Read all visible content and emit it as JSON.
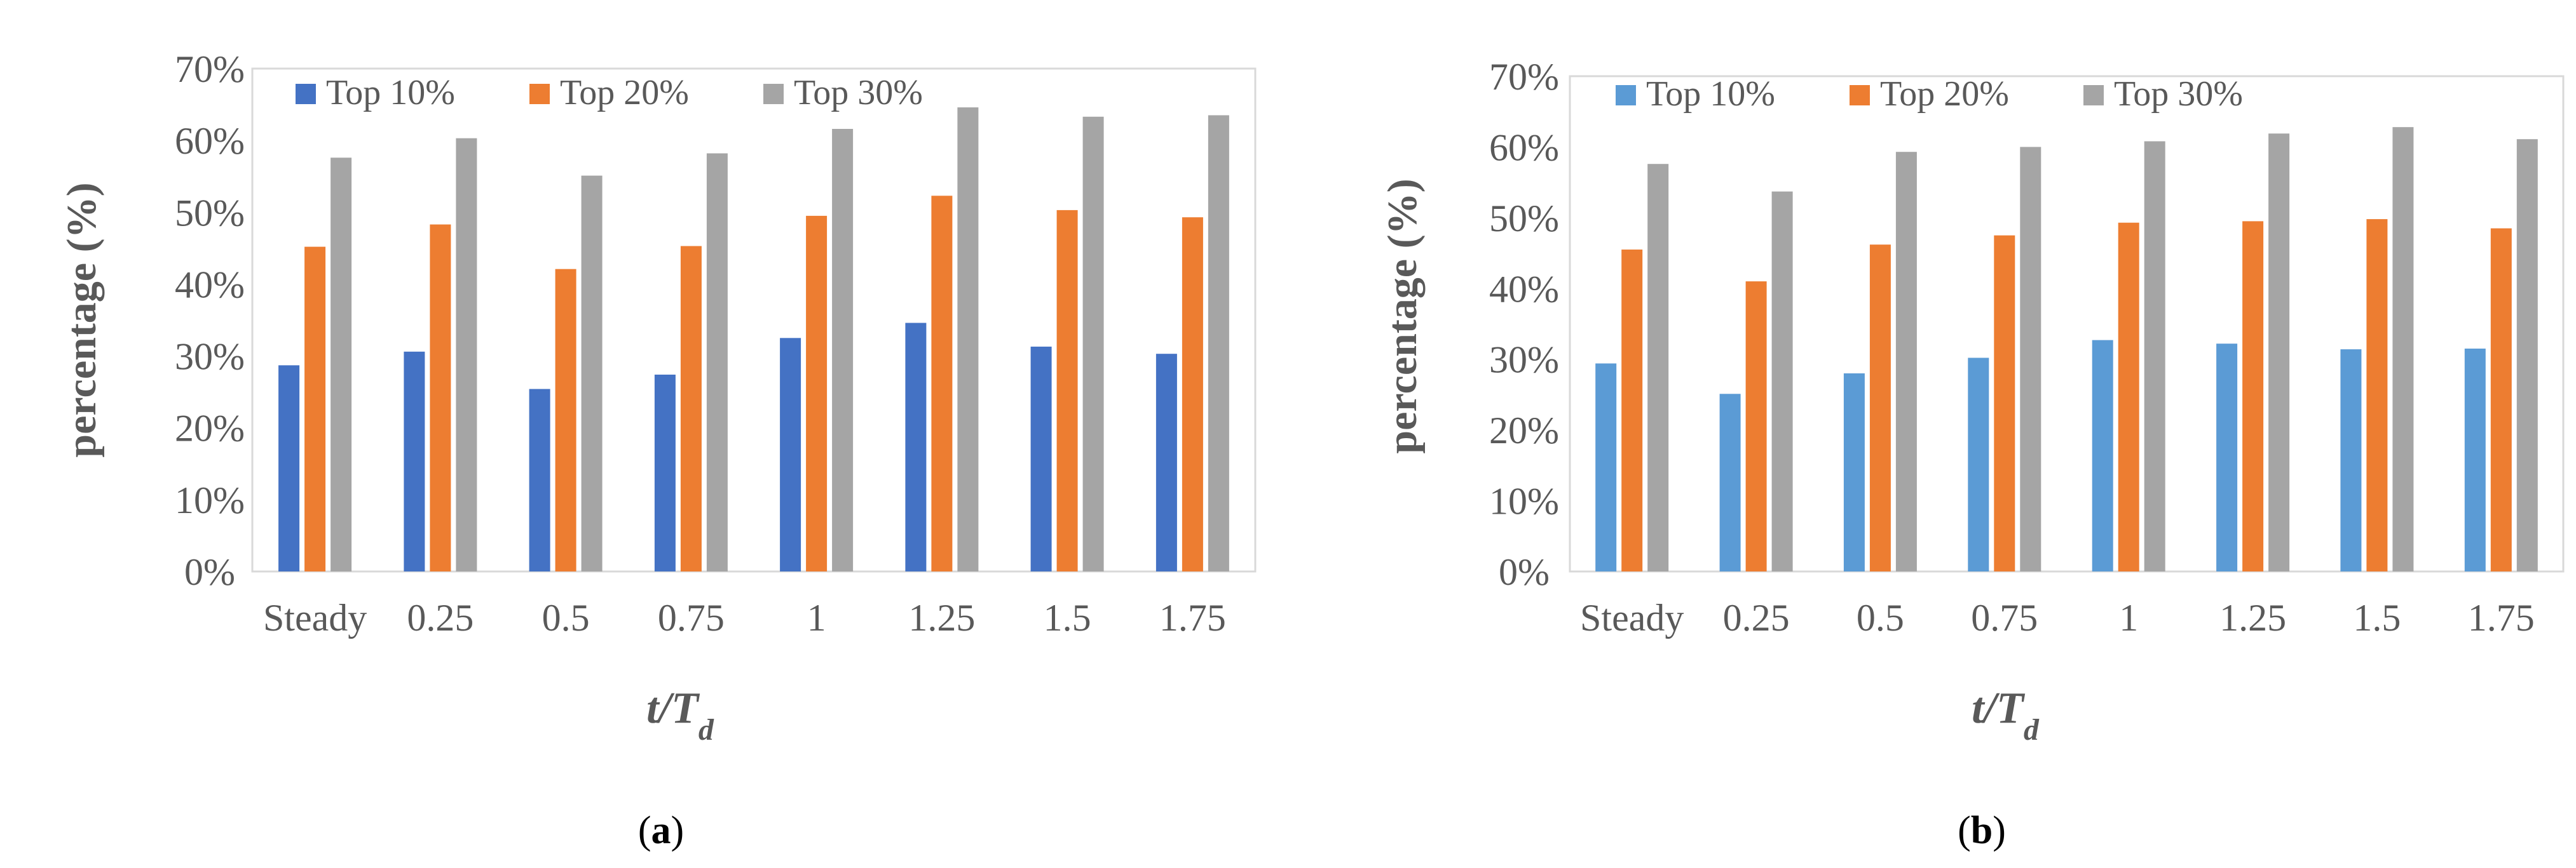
{
  "chart_data": [
    {
      "type": "bar",
      "panel_label": "a",
      "categories": [
        "Steady",
        "0.25",
        "0.5",
        "0.75",
        "1",
        "1.25",
        "1.5",
        "1.75"
      ],
      "series": [
        {
          "name": "Top 10%",
          "color": "#4472C4",
          "values": [
            28.7,
            30.6,
            25.4,
            27.4,
            32.5,
            34.6,
            31.3,
            30.3
          ]
        },
        {
          "name": "Top 20%",
          "color": "#ED7D31",
          "values": [
            45.2,
            48.3,
            42.1,
            45.3,
            49.5,
            52.3,
            50.3,
            49.3
          ]
        },
        {
          "name": "Top 30%",
          "color": "#A5A5A5",
          "values": [
            57.6,
            60.3,
            55.1,
            58.2,
            61.6,
            64.6,
            63.3,
            63.5
          ]
        }
      ],
      "ylabel": "percentage (%)",
      "xlabel": {
        "base": "t/T",
        "subscript": "d"
      },
      "ylim": [
        0,
        70
      ],
      "yticks": [
        "0%",
        "10%",
        "20%",
        "30%",
        "40%",
        "50%",
        "60%",
        "70%"
      ],
      "legend": "top"
    },
    {
      "type": "bar",
      "panel_label": "b",
      "categories": [
        "Steady",
        "0.25",
        "0.5",
        "0.75",
        "1",
        "1.25",
        "1.5",
        "1.75"
      ],
      "series": [
        {
          "name": "Top 10%",
          "color": "#5B9BD5",
          "values": [
            29.4,
            25.1,
            28.0,
            30.2,
            32.7,
            32.2,
            31.4,
            31.5
          ]
        },
        {
          "name": "Top 20%",
          "color": "#ED7D31",
          "values": [
            45.5,
            41.0,
            46.2,
            47.5,
            49.3,
            49.5,
            49.8,
            48.5
          ]
        },
        {
          "name": "Top 30%",
          "color": "#A5A5A5",
          "values": [
            57.6,
            53.7,
            59.3,
            60.0,
            60.8,
            61.9,
            62.8,
            61.1
          ]
        }
      ],
      "ylabel": "percentage (%)",
      "xlabel": {
        "base": "t/T",
        "subscript": "d"
      },
      "ylim": [
        0,
        70
      ],
      "yticks": [
        "0%",
        "10%",
        "20%",
        "30%",
        "40%",
        "50%",
        "60%",
        "70%"
      ],
      "legend": "top"
    }
  ]
}
